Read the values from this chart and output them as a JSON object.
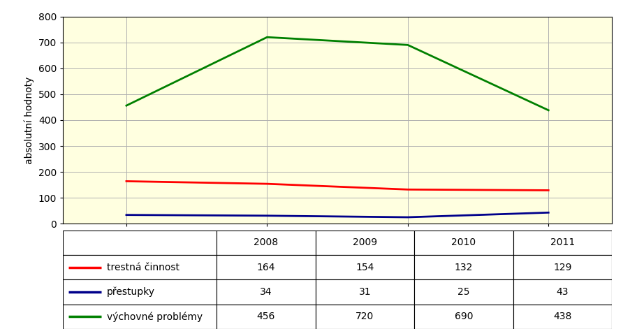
{
  "years": [
    2008,
    2009,
    2010,
    2011
  ],
  "trestna_cinnost": [
    164,
    154,
    132,
    129
  ],
  "prestupky": [
    34,
    31,
    25,
    43
  ],
  "vychovne_problemy": [
    456,
    720,
    690,
    438
  ],
  "line_colors": {
    "trestna_cinnost": "#ff0000",
    "prestupky": "#00008b",
    "vychovne_problemy": "#008000"
  },
  "ylabel": "absolutní hodnoty",
  "ylim": [
    0,
    800
  ],
  "yticks": [
    0,
    100,
    200,
    300,
    400,
    500,
    600,
    700,
    800
  ],
  "background_color": "#ffffe0",
  "grid_color": "#b0b0b0",
  "legend_labels": [
    "trestná činnost",
    "přestupky",
    "výchovné problémy"
  ],
  "table_rows": [
    {
      "label": "trestná činnost",
      "color": "#ff0000",
      "values": [
        164,
        154,
        132,
        129
      ]
    },
    {
      "label": "přestupky",
      "color": "#00008b",
      "values": [
        34,
        31,
        25,
        43
      ]
    },
    {
      "label": "výchovné problémy",
      "color": "#008000",
      "values": [
        456,
        720,
        690,
        438
      ]
    }
  ],
  "line_width": 2.0,
  "fig_bg": "#ffffff",
  "border_color": "#000000",
  "tick_fontsize": 10,
  "ylabel_fontsize": 10,
  "table_fontsize": 10
}
